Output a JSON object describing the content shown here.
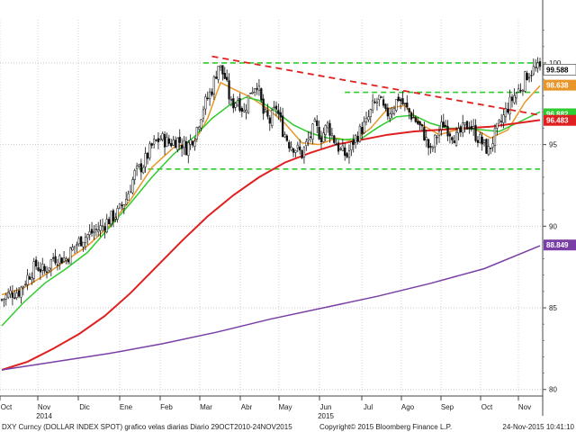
{
  "chart_data": {
    "type": "candlestick",
    "grid": true,
    "y_axis_position": "right",
    "ylim": [
      79.6,
      102.2
    ],
    "y_ticks": [
      "100",
      "95",
      "90",
      "85",
      "80"
    ],
    "x_month_labels": [
      "Oct",
      "Nov",
      "Dic",
      "Ene",
      "Feb",
      "Mar",
      "Abr",
      "May",
      "Jun",
      "Jul",
      "Ago",
      "Sep",
      "Oct",
      "Nov"
    ],
    "x_year_labels": [
      {
        "label": "2014",
        "at_month": "Nov"
      },
      {
        "label": "2015",
        "at_month": "Jun"
      }
    ],
    "candles_close_path": [
      [
        0,
        85.5
      ],
      [
        4,
        85.9
      ],
      [
        8,
        86.0
      ],
      [
        12,
        86.9
      ],
      [
        16,
        87.6
      ],
      [
        20,
        87.2
      ],
      [
        24,
        88.1
      ],
      [
        30,
        88.0
      ],
      [
        34,
        88.8
      ],
      [
        38,
        89.3
      ],
      [
        42,
        89.6
      ],
      [
        46,
        89.9
      ],
      [
        50,
        90.4
      ],
      [
        54,
        90.8
      ],
      [
        58,
        91.7
      ],
      [
        62,
        93.2
      ],
      [
        66,
        93.8
      ],
      [
        70,
        94.9
      ],
      [
        74,
        95.4
      ],
      [
        78,
        95.1
      ],
      [
        82,
        95.3
      ],
      [
        86,
        94.8
      ],
      [
        90,
        95.6
      ],
      [
        94,
        97.3
      ],
      [
        98,
        98.4
      ],
      [
        101,
        99.9
      ],
      [
        104,
        99.1
      ],
      [
        107,
        97.4
      ],
      [
        110,
        97.8
      ],
      [
        113,
        97.0
      ],
      [
        116,
        98.3
      ],
      [
        119,
        98.8
      ],
      [
        122,
        96.9
      ],
      [
        125,
        96.4
      ],
      [
        128,
        97.3
      ],
      [
        131,
        95.9
      ],
      [
        134,
        95.1
      ],
      [
        137,
        94.8
      ],
      [
        140,
        94.4
      ],
      [
        143,
        95.3
      ],
      [
        146,
        96.1
      ],
      [
        149,
        95.5
      ],
      [
        152,
        96.2
      ],
      [
        155,
        95.3
      ],
      [
        158,
        94.6
      ],
      [
        161,
        94.3
      ],
      [
        164,
        95.2
      ],
      [
        167,
        95.8
      ],
      [
        170,
        96.3
      ],
      [
        173,
        97.3
      ],
      [
        176,
        97.8
      ],
      [
        179,
        96.8
      ],
      [
        182,
        97.2
      ],
      [
        185,
        97.9
      ],
      [
        188,
        97.3
      ],
      [
        191,
        96.8
      ],
      [
        194,
        96.3
      ],
      [
        197,
        95.6
      ],
      [
        200,
        94.5
      ],
      [
        203,
        95.6
      ],
      [
        206,
        96.3
      ],
      [
        209,
        95.8
      ],
      [
        212,
        95.4
      ],
      [
        215,
        95.9
      ],
      [
        218,
        96.3
      ],
      [
        221,
        95.6
      ],
      [
        224,
        95.1
      ],
      [
        227,
        94.6
      ],
      [
        230,
        95.6
      ],
      [
        233,
        96.4
      ],
      [
        236,
        97.3
      ],
      [
        239,
        98.0
      ],
      [
        242,
        98.5
      ],
      [
        245,
        99.3
      ],
      [
        248,
        99.6
      ],
      [
        251,
        99.6
      ]
    ],
    "series": [
      {
        "color": "#e8962a",
        "tag": "98.638",
        "points": [
          [
            0,
            85.8
          ],
          [
            10,
            86.2
          ],
          [
            20,
            87.0
          ],
          [
            30,
            87.9
          ],
          [
            40,
            88.8
          ],
          [
            50,
            90.0
          ],
          [
            60,
            91.6
          ],
          [
            70,
            93.6
          ],
          [
            80,
            94.8
          ],
          [
            90,
            95.2
          ],
          [
            96,
            96.6
          ],
          [
            102,
            98.8
          ],
          [
            108,
            98.4
          ],
          [
            116,
            97.9
          ],
          [
            124,
            97.2
          ],
          [
            132,
            96.3
          ],
          [
            140,
            95.1
          ],
          [
            148,
            95.0
          ],
          [
            156,
            95.4
          ],
          [
            164,
            95.2
          ],
          [
            172,
            96.0
          ],
          [
            180,
            97.2
          ],
          [
            188,
            97.4
          ],
          [
            196,
            96.2
          ],
          [
            204,
            95.6
          ],
          [
            212,
            95.9
          ],
          [
            220,
            96.0
          ],
          [
            228,
            95.4
          ],
          [
            236,
            95.9
          ],
          [
            244,
            97.6
          ],
          [
            251,
            98.6
          ]
        ]
      },
      {
        "color": "#2ecc2e",
        "tag": "96.882",
        "points": [
          [
            0,
            83.9
          ],
          [
            10,
            85.3
          ],
          [
            20,
            86.5
          ],
          [
            30,
            87.4
          ],
          [
            40,
            88.4
          ],
          [
            50,
            89.9
          ],
          [
            60,
            91.4
          ],
          [
            70,
            93.0
          ],
          [
            80,
            94.4
          ],
          [
            90,
            95.5
          ],
          [
            98,
            96.6
          ],
          [
            106,
            97.4
          ],
          [
            114,
            97.9
          ],
          [
            120,
            97.7
          ],
          [
            128,
            97.0
          ],
          [
            136,
            96.2
          ],
          [
            144,
            95.7
          ],
          [
            152,
            95.4
          ],
          [
            160,
            95.3
          ],
          [
            168,
            95.4
          ],
          [
            176,
            96.1
          ],
          [
            184,
            96.7
          ],
          [
            192,
            96.8
          ],
          [
            200,
            96.3
          ],
          [
            208,
            96.0
          ],
          [
            216,
            96.0
          ],
          [
            224,
            95.9
          ],
          [
            232,
            95.8
          ],
          [
            240,
            96.3
          ],
          [
            251,
            97.0
          ]
        ]
      },
      {
        "color": "#e02020",
        "tag": "96.483",
        "points": [
          [
            0,
            81.2
          ],
          [
            12,
            81.7
          ],
          [
            24,
            82.5
          ],
          [
            36,
            83.4
          ],
          [
            48,
            84.5
          ],
          [
            60,
            85.9
          ],
          [
            72,
            87.5
          ],
          [
            84,
            89.1
          ],
          [
            96,
            90.6
          ],
          [
            108,
            91.9
          ],
          [
            120,
            93.0
          ],
          [
            132,
            93.9
          ],
          [
            144,
            94.5
          ],
          [
            156,
            95.0
          ],
          [
            168,
            95.3
          ],
          [
            180,
            95.6
          ],
          [
            192,
            95.8
          ],
          [
            204,
            95.9
          ],
          [
            216,
            96.0
          ],
          [
            228,
            96.1
          ],
          [
            240,
            96.3
          ],
          [
            251,
            96.5
          ]
        ]
      },
      {
        "color": "#7a3fa6",
        "tag": "88.849",
        "points": [
          [
            0,
            81.2
          ],
          [
            25,
            81.7
          ],
          [
            50,
            82.2
          ],
          [
            75,
            82.8
          ],
          [
            100,
            83.5
          ],
          [
            125,
            84.3
          ],
          [
            150,
            85.0
          ],
          [
            175,
            85.7
          ],
          [
            200,
            86.5
          ],
          [
            225,
            87.4
          ],
          [
            251,
            88.8
          ]
        ]
      }
    ],
    "last_price_tag": "99.588",
    "horizontal_levels": [
      {
        "value": 100.0,
        "from": 94,
        "to": 251,
        "color": "#2ecc2e",
        "style": "dashed"
      },
      {
        "value": 98.2,
        "from": 160,
        "to": 251,
        "color": "#2ecc2e",
        "style": "dashed"
      },
      {
        "value": 93.5,
        "from": 64,
        "to": 251,
        "color": "#2ecc2e",
        "style": "dashed"
      }
    ],
    "trendline": {
      "from": [
        98,
        100.4
      ],
      "to": [
        251,
        96.8
      ],
      "color": "#e02020",
      "style": "dashed"
    },
    "footer_left": "DXY Curncy (DOLLAR INDEX SPOT) grafico velas diarias  Diario 29OCT2010-24NOV2015",
    "footer_center": "Copyright© 2015 Bloomberg Finance L.P.",
    "footer_right": "24-Nov-2015 10:41:10"
  }
}
